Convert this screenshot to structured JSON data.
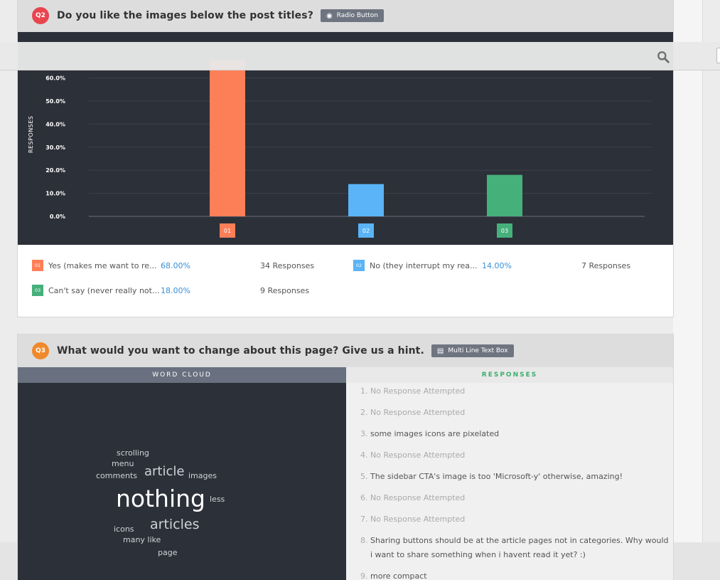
{
  "q2": {
    "badge": "Q2",
    "title": "Do you like the images below the post titles?",
    "type_label": "Radio Button",
    "ylabel": "RESPONSES",
    "legend": [
      {
        "badge": "01",
        "label": "Yes (makes me want to re...",
        "pct": "68.00%",
        "count": "34 Responses",
        "color": "#fd7f58"
      },
      {
        "badge": "02",
        "label": "No (they interrupt my rea...",
        "pct": "14.00%",
        "count": "7 Responses",
        "color": "#5ab4f7"
      },
      {
        "badge": "03",
        "label": "Can't say (never really not...",
        "pct": "18.00%",
        "count": "9 Responses",
        "color": "#46b07a"
      }
    ]
  },
  "chart_data": {
    "type": "bar",
    "categories": [
      "01",
      "02",
      "03"
    ],
    "values": [
      68,
      14,
      18
    ],
    "colors": [
      "#fd7f58",
      "#5ab4f7",
      "#46b07a"
    ],
    "ylabel": "RESPONSES",
    "yticks": [
      "0.0%",
      "10.0%",
      "20.0%",
      "30.0%",
      "40.0%",
      "50.0%",
      "60.0%"
    ],
    "ylim": [
      0,
      70
    ],
    "grid": true
  },
  "q3": {
    "badge": "Q3",
    "title": "What would you want to change about this page? Give us a hint.",
    "type_label": "Multi Line Text Box",
    "wordcloud_header": "WORD CLOUD",
    "responses_header": "RESPONSES",
    "words": [
      {
        "text": "scrolling"
      },
      {
        "text": "menu"
      },
      {
        "text": "comments"
      },
      {
        "text": "article"
      },
      {
        "text": "images"
      },
      {
        "text": "nothing"
      },
      {
        "text": "less"
      },
      {
        "text": "icons"
      },
      {
        "text": "articles"
      },
      {
        "text": "many like"
      },
      {
        "text": "page"
      }
    ],
    "responses": [
      {
        "num": "1.",
        "text": "No Response Attempted",
        "empty": true
      },
      {
        "num": "2.",
        "text": "No Response Attempted",
        "empty": true
      },
      {
        "num": "3.",
        "text": "some images icons are pixelated",
        "empty": false
      },
      {
        "num": "4.",
        "text": "No Response Attempted",
        "empty": true
      },
      {
        "num": "5.",
        "text": "The sidebar CTA's image is too 'Microsoft-y' otherwise, amazing!",
        "empty": false
      },
      {
        "num": "6.",
        "text": "No Response Attempted",
        "empty": true
      },
      {
        "num": "7.",
        "text": "No Response Attempted",
        "empty": true
      },
      {
        "num": "8.",
        "text": "Sharing buttons should be at the article pages not in categories. Why would i want to share something when i havent read it yet? :)",
        "empty": false
      },
      {
        "num": "9.",
        "text": "more compact",
        "empty": false
      }
    ]
  },
  "colors": {
    "q2_badge": "#e9454f",
    "q3_badge": "#f0892c"
  },
  "icons": {
    "search": "search-icon",
    "radio": "radio-icon",
    "textbox": "textbox-icon"
  }
}
